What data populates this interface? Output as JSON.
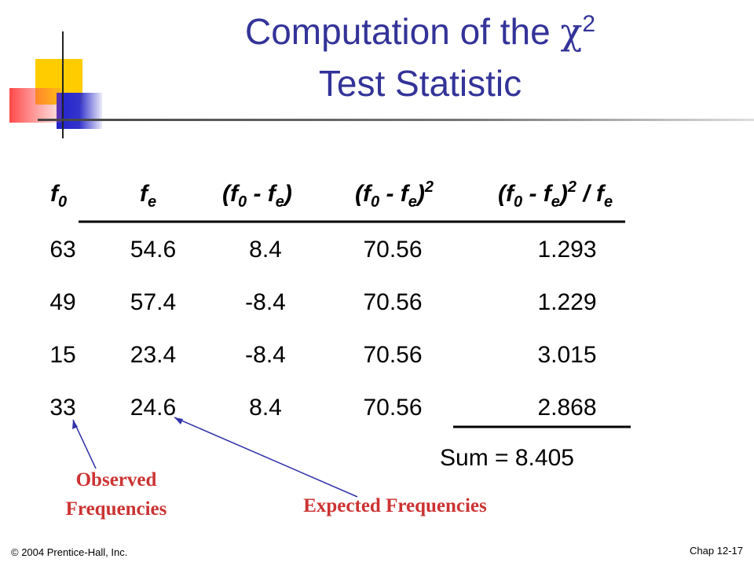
{
  "title": {
    "line1": [
      "Computation of the ",
      "χ",
      "2"
    ],
    "line2": "Test Statistic"
  },
  "table": {
    "headers": [
      [
        "f",
        "0"
      ],
      [
        "f",
        "e"
      ],
      [
        "(f",
        "0",
        " - f",
        "e",
        ")"
      ],
      [
        "(f",
        "0",
        " - f",
        "e",
        ")",
        "2"
      ],
      [
        "(f",
        "0",
        " - f",
        "e",
        ")",
        "2",
        " / f",
        "e"
      ]
    ],
    "rows": [
      [
        63,
        54.6,
        8.4,
        70.56,
        1.293
      ],
      [
        49,
        57.4,
        -8.4,
        70.56,
        1.229
      ],
      [
        15,
        23.4,
        -8.4,
        70.56,
        3.015
      ],
      [
        33,
        24.6,
        8.4,
        70.56,
        2.868
      ]
    ],
    "sum": "Sum = 8.405"
  },
  "annotations": {
    "observed": [
      "Observed",
      "Frequencies"
    ],
    "expected": "Expected Frequencies"
  },
  "footer": {
    "left": "© 2004 Prentice-Hall, Inc.",
    "right": "Chap 12-17"
  }
}
